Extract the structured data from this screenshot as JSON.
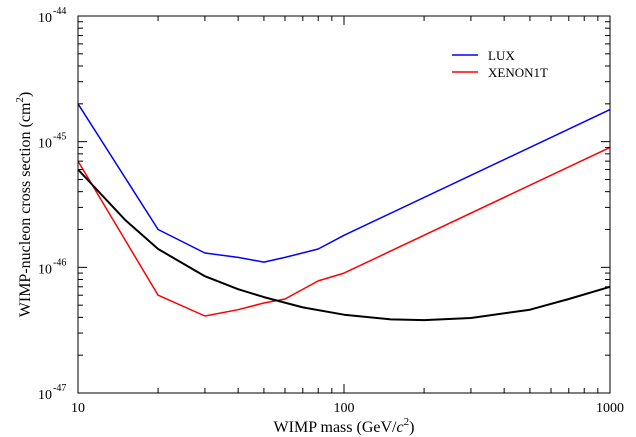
{
  "chart_data": {
    "type": "line",
    "xlabel": "WIMP mass (GeV/c²)",
    "xlabel_parts": {
      "main": "WIMP mass (GeV/",
      "italic": "c",
      "sup": "2",
      "close": ")"
    },
    "ylabel": "WIMP-nucleon cross section (cm²)",
    "ylabel_parts": {
      "main": "WIMP-nucleon cross section (cm",
      "sup": "2",
      "close": ")"
    },
    "xscale": "log",
    "yscale": "log",
    "xlim": [
      10,
      1000
    ],
    "ylim": [
      1e-47,
      1e-44
    ],
    "x_ticks": [
      {
        "value": 10,
        "label": "10"
      },
      {
        "value": 100,
        "label": "100"
      },
      {
        "value": 1000,
        "label": "1000"
      }
    ],
    "y_ticks": [
      {
        "value": 1e-47,
        "base": "10",
        "exp": "-47"
      },
      {
        "value": 1e-46,
        "base": "10",
        "exp": "-46"
      },
      {
        "value": 1e-45,
        "base": "10",
        "exp": "-45"
      },
      {
        "value": 1e-44,
        "base": "10",
        "exp": "-44"
      }
    ],
    "legend_position": "top-right",
    "grid": false,
    "series": [
      {
        "name": "LUX",
        "color": "#0000ff",
        "x": [
          10,
          20,
          30,
          40,
          50,
          60,
          80,
          100,
          1000
        ],
        "y": [
          2e-45,
          2e-46,
          1.3e-46,
          1.2e-46,
          1.1e-46,
          1.2e-46,
          1.4e-46,
          1.8e-46,
          1.8e-45
        ]
      },
      {
        "name": "XENON1T",
        "color": "#ff0000",
        "x": [
          10,
          20,
          30,
          40,
          50,
          60,
          80,
          100,
          1000
        ],
        "y": [
          7e-46,
          6e-47,
          4.1e-47,
          4.6e-47,
          5.2e-47,
          5.6e-47,
          7.8e-47,
          9e-47,
          9e-46
        ]
      },
      {
        "name": "",
        "color": "#000000",
        "x": [
          10,
          15,
          20,
          30,
          40,
          50,
          70,
          100,
          150,
          200,
          300,
          500,
          700,
          1000
        ],
        "y": [
          6e-46,
          2.4e-46,
          1.4e-46,
          8.5e-47,
          6.7e-47,
          5.8e-47,
          4.8e-47,
          4.2e-47,
          3.85e-47,
          3.8e-47,
          3.95e-47,
          4.6e-47,
          5.6e-47,
          7e-47
        ]
      }
    ]
  }
}
